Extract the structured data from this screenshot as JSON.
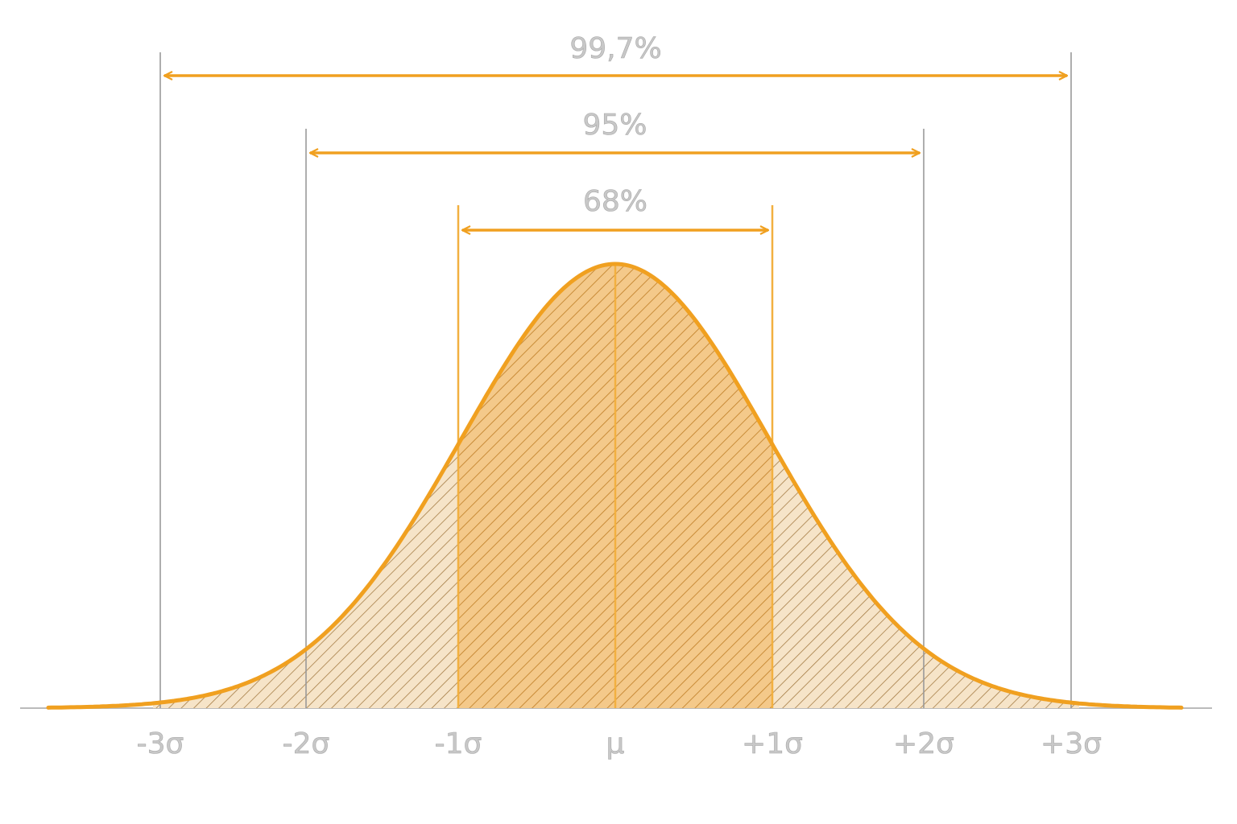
{
  "axis_labels": [
    "-3σ",
    "-2σ",
    "-1σ",
    "μ",
    "+1σ",
    "+2σ",
    "+3σ"
  ],
  "intervals": [
    {
      "label": "99,7%"
    },
    {
      "label": "95%"
    },
    {
      "label": "68%"
    }
  ]
}
